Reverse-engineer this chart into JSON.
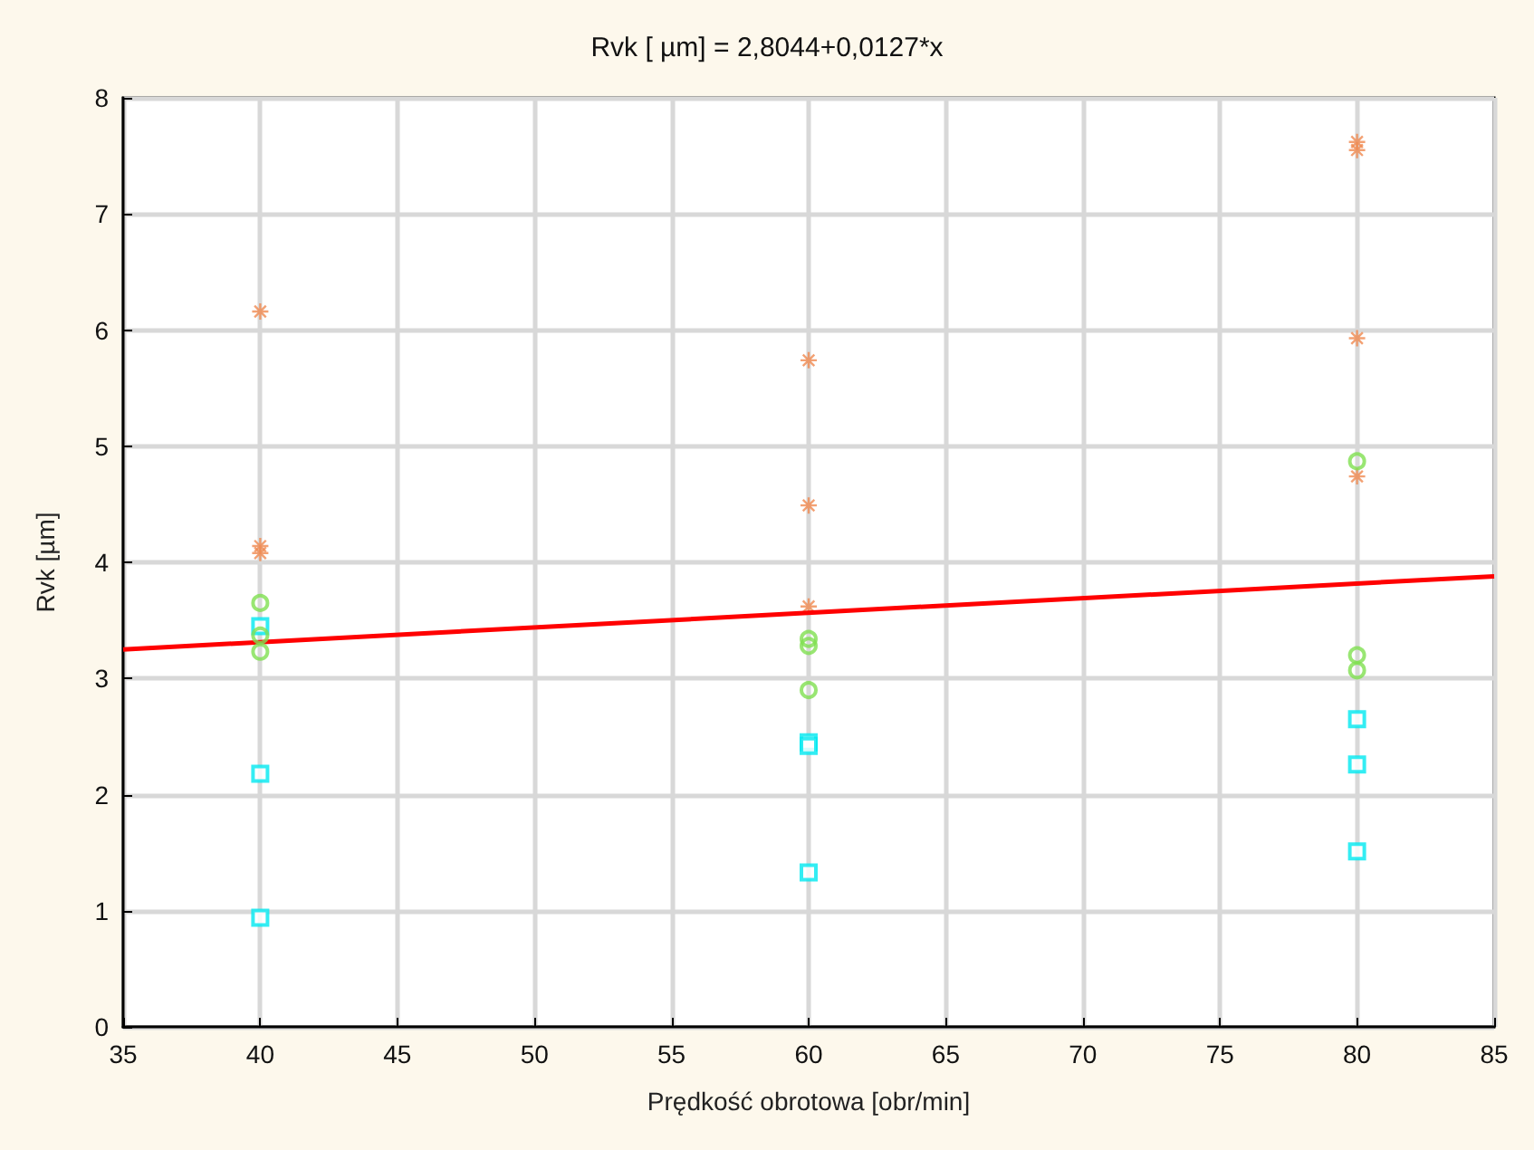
{
  "chart_data": {
    "type": "scatter",
    "title": "Rvk [ µm] = 2,8044+0,0127*x",
    "xlabel": "Prędkość obrotowa [obr/min]",
    "ylabel": "Rvk [µm]",
    "xlim": [
      35,
      85
    ],
    "xticks": [
      35,
      40,
      45,
      50,
      55,
      60,
      65,
      70,
      75,
      80,
      85
    ],
    "ylim": [
      0,
      8
    ],
    "yticks": [
      0,
      1,
      2,
      3,
      4,
      5,
      6,
      7,
      8
    ],
    "grid": true,
    "series": [
      {
        "color": "#f08a50",
        "marker": "cross",
        "x": [
          40,
          40,
          40,
          60,
          60,
          60,
          80,
          80,
          80,
          80
        ],
        "values": [
          6.16,
          4.14,
          4.08,
          5.74,
          4.49,
          3.62,
          7.62,
          7.55,
          5.93,
          4.74
        ]
      },
      {
        "color": "#80e050",
        "marker": "circle",
        "x": [
          40,
          40,
          40,
          60,
          60,
          60,
          80,
          80,
          80
        ],
        "values": [
          3.65,
          3.37,
          3.23,
          3.34,
          3.28,
          2.9,
          4.87,
          3.2,
          3.07
        ]
      },
      {
        "color": "#00e8f0",
        "marker": "square",
        "x": [
          40,
          40,
          40,
          60,
          60,
          60,
          80,
          80,
          80
        ],
        "values": [
          3.45,
          2.18,
          0.94,
          2.45,
          2.42,
          1.33,
          2.65,
          2.26,
          1.51
        ]
      },
      {
        "type": "line",
        "color": "#ff0000",
        "marker": "none",
        "line_style": "solid",
        "x": [
          35,
          85
        ],
        "values": [
          3.25,
          3.88
        ]
      }
    ]
  }
}
